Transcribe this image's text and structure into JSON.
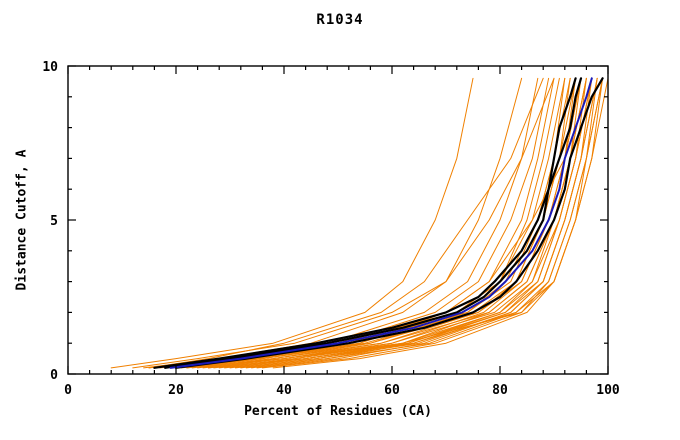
{
  "title": "R1034",
  "chart_data": {
    "type": "line",
    "title": "R1034",
    "xlabel": "Percent of Residues (CA)",
    "ylabel": "Distance Cutoff, A",
    "xlim": [
      0,
      100
    ],
    "ylim": [
      0,
      10
    ],
    "x_ticks": [
      0,
      20,
      40,
      60,
      80,
      100
    ],
    "y_ticks": [
      0,
      5,
      10
    ],
    "x_minor_step": 4,
    "y_minor_step": 1,
    "grid": false,
    "legend": "none",
    "colors": {
      "orange": "#f08000",
      "black": "#000000",
      "blue": "#1a1ab8"
    },
    "y_anchors": {
      "coarse": [
        0.2,
        0.5,
        1,
        2,
        3,
        5,
        7,
        9.6
      ],
      "fine": [
        0.2,
        0.5,
        1,
        1.5,
        2,
        2.5,
        3,
        4,
        5,
        6,
        7,
        8,
        9,
        9.6
      ]
    },
    "series": [
      {
        "name": "orange-01",
        "color_key": "orange",
        "width": 1,
        "y_key": "coarse",
        "xs": [
          8,
          20,
          38,
          55,
          62,
          68,
          72,
          75
        ]
      },
      {
        "name": "orange-02",
        "color_key": "orange",
        "width": 1,
        "y_key": "coarse",
        "xs": [
          14,
          28,
          45,
          62,
          70,
          76,
          80,
          84
        ]
      },
      {
        "name": "orange-03",
        "color_key": "orange",
        "width": 1,
        "y_key": "coarse",
        "xs": [
          16,
          30,
          48,
          66,
          74,
          80,
          84,
          87
        ]
      },
      {
        "name": "orange-04",
        "color_key": "orange",
        "width": 1,
        "y_key": "coarse",
        "xs": [
          18,
          32,
          50,
          68,
          76,
          82,
          86,
          89
        ]
      },
      {
        "name": "orange-05",
        "color_key": "orange",
        "width": 1,
        "y_key": "coarse",
        "xs": [
          20,
          35,
          52,
          70,
          78,
          84,
          87,
          90
        ]
      },
      {
        "name": "orange-06",
        "color_key": "orange",
        "width": 1,
        "y_key": "coarse",
        "xs": [
          15,
          30,
          50,
          72,
          80,
          85,
          88,
          91
        ]
      },
      {
        "name": "orange-07",
        "color_key": "orange",
        "width": 1,
        "y_key": "coarse",
        "xs": [
          22,
          36,
          54,
          72,
          80,
          86,
          89,
          92
        ]
      },
      {
        "name": "orange-08",
        "color_key": "orange",
        "width": 1,
        "y_key": "coarse",
        "xs": [
          17,
          33,
          52,
          74,
          81,
          87,
          90,
          92
        ]
      },
      {
        "name": "orange-09",
        "color_key": "orange",
        "width": 1,
        "y_key": "coarse",
        "xs": [
          24,
          38,
          56,
          74,
          82,
          87,
          90,
          93
        ]
      },
      {
        "name": "orange-10",
        "color_key": "orange",
        "width": 1,
        "y_key": "coarse",
        "xs": [
          19,
          34,
          55,
          75,
          83,
          88,
          91,
          93
        ]
      },
      {
        "name": "orange-11",
        "color_key": "orange",
        "width": 1,
        "y_key": "coarse",
        "xs": [
          26,
          40,
          58,
          76,
          83,
          88,
          91,
          94
        ]
      },
      {
        "name": "orange-12",
        "color_key": "orange",
        "width": 1,
        "y_key": "coarse",
        "xs": [
          21,
          36,
          56,
          76,
          84,
          89,
          92,
          94
        ]
      },
      {
        "name": "orange-13",
        "color_key": "orange",
        "width": 1,
        "y_key": "coarse",
        "xs": [
          28,
          42,
          60,
          77,
          84,
          89,
          92,
          95
        ]
      },
      {
        "name": "orange-14",
        "color_key": "orange",
        "width": 1,
        "y_key": "coarse",
        "xs": [
          23,
          38,
          58,
          78,
          85,
          90,
          93,
          95
        ]
      },
      {
        "name": "orange-15",
        "color_key": "orange",
        "width": 1,
        "y_key": "coarse",
        "xs": [
          30,
          44,
          62,
          78,
          85,
          90,
          93,
          96
        ]
      },
      {
        "name": "orange-16",
        "color_key": "orange",
        "width": 1,
        "y_key": "coarse",
        "xs": [
          25,
          40,
          60,
          79,
          86,
          90,
          93,
          96
        ]
      },
      {
        "name": "orange-17",
        "color_key": "orange",
        "width": 1,
        "y_key": "coarse",
        "xs": [
          32,
          46,
          63,
          80,
          86,
          91,
          94,
          96
        ]
      },
      {
        "name": "orange-18",
        "color_key": "orange",
        "width": 1,
        "y_key": "coarse",
        "xs": [
          27,
          42,
          62,
          80,
          87,
          91,
          94,
          97
        ]
      },
      {
        "name": "orange-19",
        "color_key": "orange",
        "width": 1,
        "y_key": "coarse",
        "xs": [
          34,
          48,
          64,
          81,
          87,
          91,
          94,
          97
        ]
      },
      {
        "name": "orange-20",
        "color_key": "orange",
        "width": 1,
        "y_key": "coarse",
        "xs": [
          29,
          44,
          63,
          81,
          88,
          92,
          95,
          97
        ]
      },
      {
        "name": "orange-21",
        "color_key": "orange",
        "width": 1,
        "y_key": "coarse",
        "xs": [
          35,
          50,
          66,
          82,
          88,
          92,
          95,
          98
        ]
      },
      {
        "name": "orange-22",
        "color_key": "orange",
        "width": 1,
        "y_key": "coarse",
        "xs": [
          31,
          46,
          65,
          82,
          88,
          92,
          95,
          98
        ]
      },
      {
        "name": "orange-23",
        "color_key": "orange",
        "width": 1,
        "y_key": "coarse",
        "xs": [
          33,
          48,
          67,
          83,
          89,
          93,
          96,
          98
        ]
      },
      {
        "name": "orange-24",
        "color_key": "orange",
        "width": 1,
        "y_key": "coarse",
        "xs": [
          36,
          52,
          68,
          84,
          89,
          93,
          96,
          99
        ]
      },
      {
        "name": "orange-25",
        "color_key": "orange",
        "width": 1,
        "y_key": "coarse",
        "xs": [
          20,
          34,
          54,
          70,
          78,
          86,
          92,
          95
        ]
      },
      {
        "name": "orange-26",
        "color_key": "orange",
        "width": 1,
        "y_key": "coarse",
        "xs": [
          15,
          26,
          40,
          58,
          66,
          74,
          82,
          88
        ]
      },
      {
        "name": "orange-27",
        "color_key": "orange",
        "width": 1,
        "y_key": "coarse",
        "xs": [
          12,
          24,
          42,
          60,
          70,
          78,
          84,
          90
        ]
      },
      {
        "name": "orange-28",
        "color_key": "orange",
        "width": 1,
        "y_key": "coarse",
        "xs": [
          38,
          54,
          70,
          85,
          90,
          94,
          96,
          99
        ]
      },
      {
        "name": "orange-29",
        "color_key": "orange",
        "width": 1,
        "y_key": "coarse",
        "xs": [
          26,
          44,
          64,
          83,
          90,
          94,
          97,
          99
        ]
      },
      {
        "name": "orange-30",
        "color_key": "orange",
        "width": 1,
        "y_key": "coarse",
        "xs": [
          22,
          40,
          62,
          84,
          90,
          94,
          97,
          100
        ]
      },
      {
        "name": "black-1",
        "color_key": "black",
        "width": 2.2,
        "y_key": "fine",
        "xs": [
          18,
          30,
          48,
          62,
          72,
          77,
          80,
          85,
          88,
          89,
          90,
          91,
          93,
          94
        ]
      },
      {
        "name": "black-2",
        "color_key": "black",
        "width": 2.2,
        "y_key": "fine",
        "xs": [
          20,
          33,
          52,
          66,
          75,
          80,
          83,
          87,
          90,
          92,
          93,
          95,
          97,
          99
        ]
      },
      {
        "name": "black-3",
        "color_key": "black",
        "width": 2.2,
        "y_key": "fine",
        "xs": [
          16,
          28,
          46,
          60,
          70,
          76,
          79,
          84,
          87,
          89,
          91,
          93,
          94,
          95
        ]
      },
      {
        "name": "blue-1",
        "color_key": "blue",
        "width": 2,
        "y_key": "fine",
        "xs": [
          19,
          32,
          50,
          64,
          73,
          78,
          81,
          86,
          89,
          91,
          92,
          94,
          96,
          97
        ]
      }
    ]
  },
  "plot_geometry_note": "x axis 0-100 percent, y axis 0-10 Angstrom"
}
